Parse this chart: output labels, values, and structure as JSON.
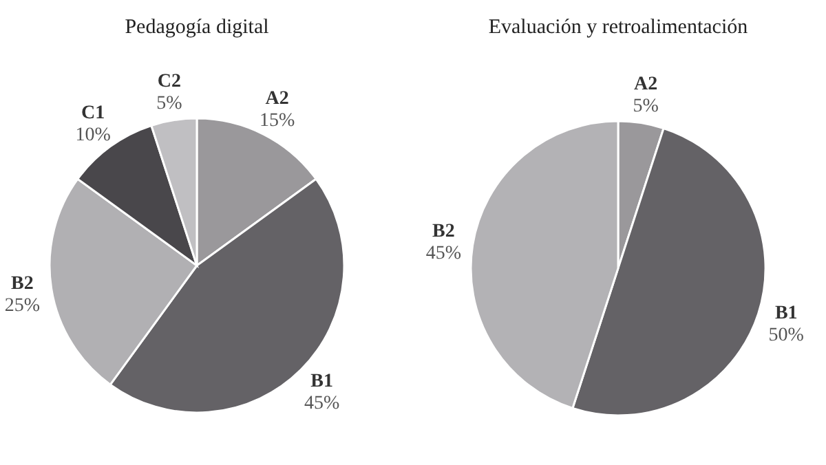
{
  "chart_data": [
    {
      "type": "pie",
      "title": "Pedagogía digital",
      "categories": [
        "A2",
        "B1",
        "B2",
        "C1",
        "C2"
      ],
      "values": [
        15,
        45,
        25,
        10,
        5
      ],
      "colors": [
        "#9a989b",
        "#646266",
        "#b1b0b3",
        "#49474b",
        "#c0bfc2"
      ],
      "value_labels": [
        "15%",
        "45%",
        "25%",
        "10%",
        "5%"
      ]
    },
    {
      "type": "pie",
      "title": "Evaluación y retroalimentación",
      "categories": [
        "A2",
        "B1",
        "B2"
      ],
      "values": [
        5,
        50,
        45
      ],
      "colors": [
        "#9a989b",
        "#646266",
        "#b3b2b5"
      ],
      "value_labels": [
        "5%",
        "50%",
        "45%"
      ]
    }
  ]
}
